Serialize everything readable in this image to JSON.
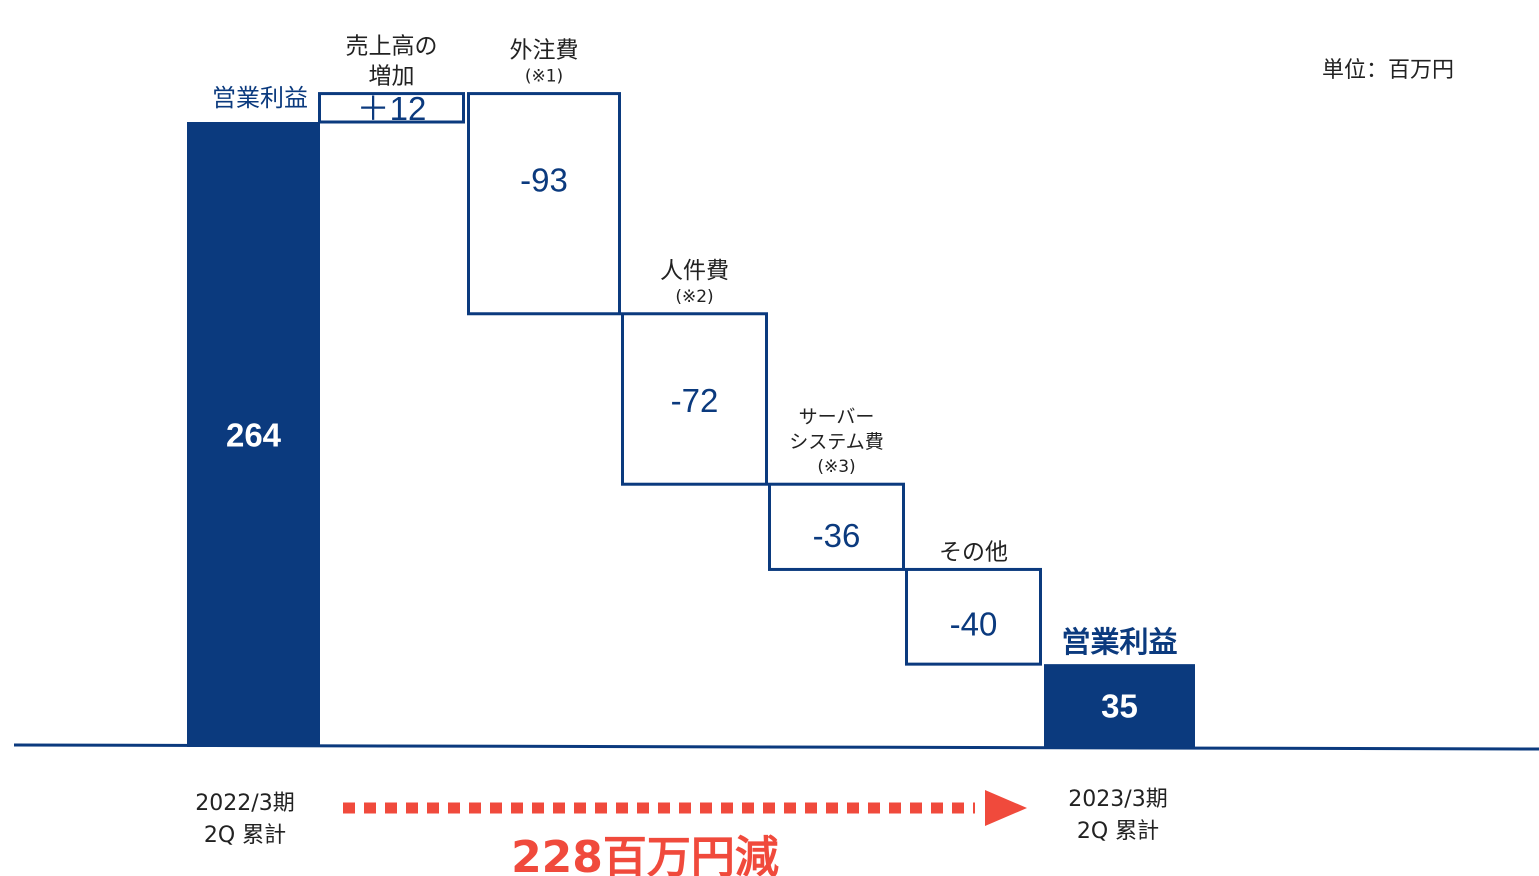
{
  "unit_label": "単位：百万円",
  "colors": {
    "navy": "#0b3a7e",
    "accent_red": "#f04a3c"
  },
  "start": {
    "label": "営業利益",
    "value": 264,
    "value_text": "264",
    "period_line1": "2022/3期",
    "period_line2": "2Q 累計"
  },
  "end": {
    "label": "営業利益",
    "value": 35,
    "value_text": "35",
    "period_line1": "2023/3期",
    "period_line2": "2Q 累計"
  },
  "summary": "228百万円減",
  "chart_data": {
    "type": "bar",
    "variant": "waterfall",
    "ylim": [
      0,
      280
    ],
    "categories": [
      "営業利益",
      "売上高の増加",
      "外注費",
      "人件費",
      "サーバーシステム費",
      "その他",
      "営業利益"
    ],
    "steps": [
      {
        "kind": "total",
        "value": 264,
        "value_text": "264",
        "label_lines": [
          "営業利益"
        ]
      },
      {
        "kind": "delta",
        "value": 12,
        "value_text": "＋12",
        "label_lines": [
          "売上高の",
          "増加"
        ]
      },
      {
        "kind": "delta",
        "value": -93,
        "value_text": "-93",
        "label_lines": [
          "外注費"
        ],
        "note": "(※1)"
      },
      {
        "kind": "delta",
        "value": -72,
        "value_text": "-72",
        "label_lines": [
          "人件費"
        ],
        "note": "(※2)"
      },
      {
        "kind": "delta",
        "value": -36,
        "value_text": "-36",
        "label_lines": [
          "サーバー",
          "システム費"
        ],
        "note": "(※3)"
      },
      {
        "kind": "delta",
        "value": -40,
        "value_text": "-40",
        "label_lines": [
          "その他"
        ]
      },
      {
        "kind": "total",
        "value": 35,
        "value_text": "35",
        "label_lines": [
          "営業利益"
        ]
      }
    ]
  }
}
